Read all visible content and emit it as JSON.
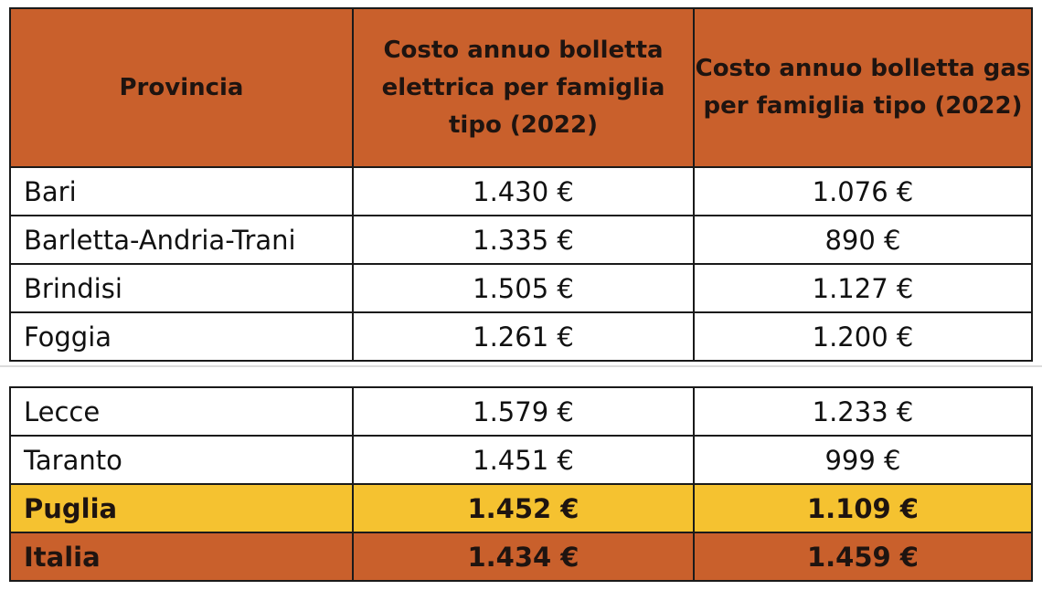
{
  "table": {
    "headers": [
      "Provincia",
      "Costo annuo bolletta elettrica per famiglia tipo (2022)",
      "Costo annuo bolletta gas per famiglia tipo (2022)"
    ],
    "rows_top": [
      {
        "provincia": "Bari",
        "elettrica": "1.430 €",
        "gas": "1.076 €"
      },
      {
        "provincia": "Barletta-Andria-Trani",
        "elettrica": "1.335 €",
        "gas": "890 €"
      },
      {
        "provincia": "Brindisi",
        "elettrica": "1.505 €",
        "gas": "1.127 €"
      },
      {
        "provincia": "Foggia",
        "elettrica": "1.261 €",
        "gas": "1.200 €"
      }
    ],
    "rows_bottom": [
      {
        "provincia": "Lecce",
        "elettrica": "1.579 €",
        "gas": "1.233 €"
      },
      {
        "provincia": "Taranto",
        "elettrica": "1.451 €",
        "gas": "999 €"
      }
    ],
    "puglia": {
      "provincia": "Puglia",
      "elettrica": "1.452 €",
      "gas": "1.109 €"
    },
    "italia": {
      "provincia": "Italia",
      "elettrica": "1.434 €",
      "gas": "1.459 €"
    }
  },
  "colors": {
    "header_bg": "#c9602c",
    "puglia_bg": "#f5c230",
    "italia_bg": "#c9602c"
  }
}
